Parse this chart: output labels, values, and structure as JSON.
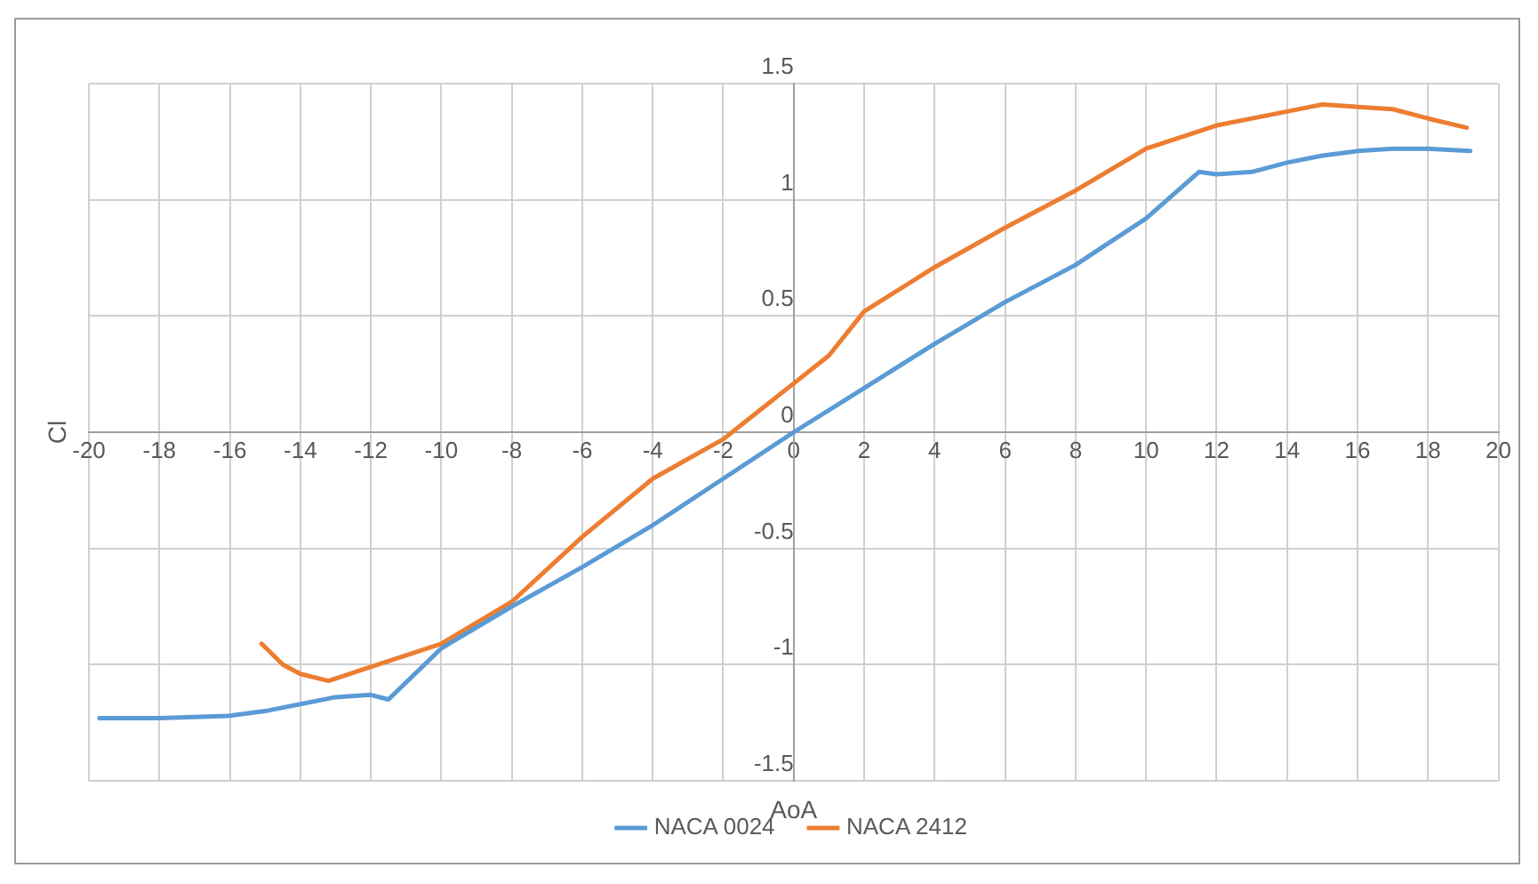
{
  "chart_data": {
    "type": "line",
    "xlabel": "AoA",
    "ylabel": "Cl",
    "xlim": [
      -20,
      20
    ],
    "xticks": [
      -20,
      -18,
      -16,
      -14,
      -12,
      -10,
      -8,
      -6,
      -4,
      -2,
      0,
      2,
      4,
      6,
      8,
      10,
      12,
      14,
      16,
      18,
      20
    ],
    "ylim": [
      -1.5,
      1.5
    ],
    "yticks": [
      -1.5,
      -1,
      -0.5,
      0,
      0.5,
      1,
      1.5
    ],
    "grid": true,
    "legend": "bottom",
    "marker": "none",
    "line_style": "solid",
    "series": [
      {
        "name": "NACA 0024",
        "color": "#5b9bd5",
        "x": [
          -19.7,
          -18,
          -16,
          -15,
          -14,
          -13,
          -12,
          -11.5,
          -10,
          -8,
          -6,
          -4,
          -2,
          0,
          2,
          4,
          6,
          8,
          9,
          10,
          11.5,
          12,
          13,
          14,
          15,
          16,
          17,
          18,
          19.2
        ],
        "values": [
          -1.23,
          -1.23,
          -1.22,
          -1.2,
          -1.17,
          -1.14,
          -1.13,
          -1.15,
          -0.93,
          -0.75,
          -0.58,
          -0.4,
          -0.2,
          0,
          0.19,
          0.38,
          0.56,
          0.72,
          0.82,
          0.92,
          1.12,
          1.11,
          1.12,
          1.16,
          1.19,
          1.21,
          1.22,
          1.22,
          1.21
        ]
      },
      {
        "name": "NACA 2412",
        "color": "#ed7d31",
        "x": [
          -15.1,
          -14.5,
          -14,
          -13.2,
          -12,
          -10,
          -8,
          -6,
          -4,
          -2,
          -1,
          0,
          1,
          2,
          4,
          6,
          8,
          10,
          12,
          14,
          15,
          16,
          17,
          18,
          19.1
        ],
        "values": [
          -0.91,
          -1.0,
          -1.04,
          -1.07,
          -1.01,
          -0.91,
          -0.73,
          -0.45,
          -0.2,
          -0.03,
          0.09,
          0.21,
          0.33,
          0.52,
          0.71,
          0.88,
          1.04,
          1.22,
          1.32,
          1.38,
          1.41,
          1.4,
          1.39,
          1.35,
          1.31
        ]
      }
    ]
  }
}
